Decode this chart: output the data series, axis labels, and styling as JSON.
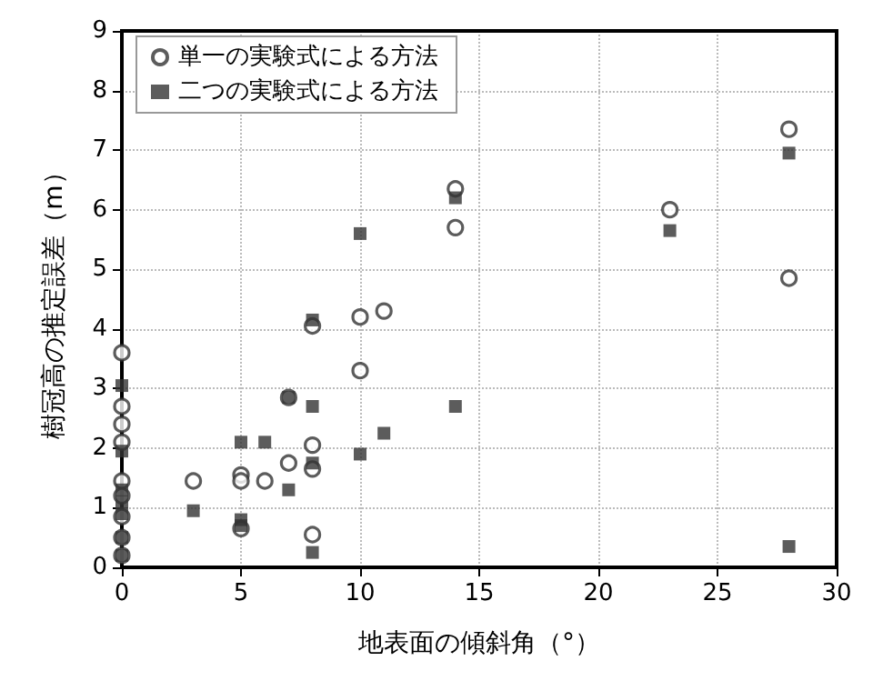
{
  "chart_data": {
    "type": "scatter",
    "xlabel": "地表面の傾斜角（°）",
    "ylabel": "樹冠高の推定誤差（m）",
    "xlim": [
      0,
      30
    ],
    "xticks": [
      0,
      5,
      10,
      15,
      20,
      25,
      30
    ],
    "ylim": [
      0,
      9
    ],
    "yticks": [
      0,
      1,
      2,
      3,
      4,
      5,
      6,
      7,
      8,
      9
    ],
    "grid": true,
    "legend": "top left",
    "series": [
      {
        "name": "単一の実験式による方法",
        "color": "#333333",
        "marker": "circle",
        "x": [
          0,
          0,
          0,
          0,
          0,
          0,
          0,
          0,
          0,
          3,
          5,
          5,
          5,
          6,
          7,
          7,
          8,
          8,
          8,
          8,
          10,
          10,
          11,
          14,
          14,
          23,
          28,
          28
        ],
        "values": [
          3.6,
          2.7,
          2.4,
          2.1,
          1.45,
          1.2,
          0.85,
          0.5,
          0.2,
          1.45,
          1.55,
          1.45,
          0.65,
          1.45,
          2.85,
          1.75,
          4.05,
          2.05,
          1.65,
          0.55,
          4.2,
          3.3,
          4.3,
          6.35,
          5.7,
          6.0,
          7.35,
          4.85
        ]
      },
      {
        "name": "二つの実験式による方法",
        "color": "#333333",
        "marker": "square",
        "x": [
          0,
          0,
          0,
          0,
          0,
          0,
          0,
          3,
          5,
          5,
          5,
          6,
          7,
          7,
          8,
          8,
          8,
          8,
          10,
          10,
          11,
          14,
          14,
          23,
          28,
          28
        ],
        "values": [
          3.05,
          1.95,
          1.3,
          1.1,
          0.9,
          0.5,
          0.2,
          0.95,
          2.1,
          0.8,
          0.7,
          2.1,
          2.85,
          1.3,
          4.15,
          2.7,
          1.75,
          0.25,
          5.6,
          1.9,
          2.25,
          6.2,
          2.7,
          5.65,
          6.95,
          0.35
        ]
      }
    ]
  }
}
